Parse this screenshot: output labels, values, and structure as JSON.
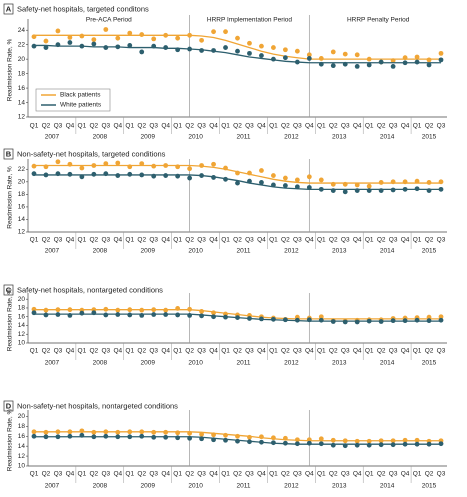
{
  "chart_data": [
    {
      "type": "scatter",
      "panel_label": "A",
      "title": "Safety-net hospitals, targeted conditons",
      "y_label": "Readmission Rate, %",
      "periods": [
        "Pre-ACA Period",
        "HRRP Implementation Period",
        "HRRP Penalty Period"
      ],
      "legend_position": "lower left",
      "categories": [
        "Q1",
        "Q2",
        "Q3",
        "Q4",
        "Q1",
        "Q2",
        "Q3",
        "Q4",
        "Q1",
        "Q2",
        "Q3",
        "Q4",
        "Q1",
        "Q2",
        "Q3",
        "Q4",
        "Q1",
        "Q2",
        "Q3",
        "Q4",
        "Q1",
        "Q2",
        "Q3",
        "Q4",
        "Q1",
        "Q2",
        "Q3",
        "Q4",
        "Q1",
        "Q2",
        "Q3",
        "Q4",
        "Q1",
        "Q2",
        "Q3"
      ],
      "years": [
        "2007",
        "2008",
        "2009",
        "2010",
        "2011",
        "2012",
        "2013",
        "2014",
        "2015"
      ],
      "ylim": [
        12,
        25
      ],
      "yticks": [
        12,
        14,
        16,
        18,
        20,
        22,
        24
      ],
      "grid": false,
      "series": [
        {
          "name": "Black patients",
          "color": "#f0a535",
          "values": [
            23.1,
            22.5,
            23.9,
            23.0,
            23.2,
            22.7,
            24.1,
            22.9,
            23.6,
            23.4,
            22.8,
            23.3,
            22.9,
            23.3,
            22.6,
            23.8,
            23.8,
            22.9,
            22.2,
            21.8,
            21.6,
            21.3,
            21.1,
            20.6,
            20.1,
            21.0,
            20.7,
            20.6,
            20.0,
            19.6,
            19.8,
            20.2,
            20.3,
            19.9,
            20.8
          ],
          "trend": [
            23.3,
            23.3,
            23.3,
            23.3,
            23.3,
            23.3,
            23.3,
            23.3,
            23.3,
            23.3,
            23.3,
            23.3,
            23.3,
            23.3,
            23.2,
            23.0,
            22.6,
            22.1,
            21.6,
            21.1,
            20.7,
            20.4,
            20.2,
            20.0,
            20.0,
            20.0,
            20.0,
            20.0,
            20.0,
            20.0,
            20.0,
            20.0,
            20.0,
            20.0,
            20.0
          ]
        },
        {
          "name": "White patients",
          "color": "#2d5f6e",
          "values": [
            21.8,
            21.6,
            22.0,
            22.3,
            21.8,
            22.1,
            21.6,
            21.7,
            21.9,
            21.0,
            21.8,
            21.6,
            21.3,
            21.4,
            21.2,
            21.2,
            21.6,
            21.1,
            20.8,
            20.5,
            20.0,
            20.2,
            19.6,
            20.1,
            19.3,
            19.1,
            19.3,
            19.0,
            19.2,
            19.6,
            19.0,
            19.5,
            19.6,
            19.2,
            19.9
          ],
          "trend": [
            21.9,
            21.9,
            21.8,
            21.8,
            21.8,
            21.7,
            21.7,
            21.7,
            21.6,
            21.6,
            21.6,
            21.5,
            21.5,
            21.4,
            21.3,
            21.1,
            20.9,
            20.6,
            20.3,
            20.1,
            19.9,
            19.7,
            19.6,
            19.5,
            19.5,
            19.5,
            19.5,
            19.5,
            19.5,
            19.5,
            19.5,
            19.5,
            19.5,
            19.5,
            19.5
          ]
        }
      ]
    },
    {
      "type": "scatter",
      "panel_label": "B",
      "title": "Non-safety-net hospitals, targeted conditions",
      "y_label": "Readmission Rate, %",
      "categories": [
        "Q1",
        "Q2",
        "Q3",
        "Q4",
        "Q1",
        "Q2",
        "Q3",
        "Q4",
        "Q1",
        "Q2",
        "Q3",
        "Q4",
        "Q1",
        "Q2",
        "Q3",
        "Q4",
        "Q1",
        "Q2",
        "Q3",
        "Q4",
        "Q1",
        "Q2",
        "Q3",
        "Q4",
        "Q1",
        "Q2",
        "Q3",
        "Q4",
        "Q1",
        "Q2",
        "Q3",
        "Q4",
        "Q1",
        "Q2",
        "Q3"
      ],
      "years": [
        "2007",
        "2008",
        "2009",
        "2010",
        "2011",
        "2012",
        "2013",
        "2014",
        "2015"
      ],
      "ylim": [
        12,
        23
      ],
      "yticks": [
        12,
        14,
        16,
        18,
        20,
        22
      ],
      "grid": false,
      "series": [
        {
          "name": "Black patients",
          "color": "#f0a535",
          "values": [
            22.5,
            22.4,
            23.2,
            22.8,
            22.2,
            22.6,
            22.9,
            23.0,
            22.4,
            22.9,
            22.5,
            22.6,
            22.4,
            22.1,
            22.6,
            22.8,
            22.2,
            21.4,
            21.4,
            21.8,
            21.0,
            20.6,
            20.3,
            20.8,
            20.3,
            19.6,
            19.6,
            19.5,
            19.3,
            19.9,
            20.0,
            20.0,
            20.1,
            19.9,
            20.0
          ],
          "trend": [
            22.6,
            22.6,
            22.6,
            22.6,
            22.6,
            22.6,
            22.6,
            22.6,
            22.6,
            22.6,
            22.6,
            22.6,
            22.6,
            22.6,
            22.5,
            22.3,
            22.0,
            21.6,
            21.2,
            20.8,
            20.4,
            20.1,
            19.9,
            19.8,
            19.8,
            19.8,
            19.8,
            19.8,
            19.8,
            19.8,
            19.8,
            19.8,
            19.8,
            19.8,
            19.8
          ]
        },
        {
          "name": "White patients",
          "color": "#2d5f6e",
          "values": [
            21.3,
            21.1,
            21.3,
            21.2,
            20.8,
            21.2,
            21.3,
            21.0,
            21.2,
            21.1,
            20.9,
            21.0,
            20.9,
            20.6,
            21.0,
            20.7,
            20.4,
            19.8,
            20.1,
            19.9,
            19.5,
            19.4,
            19.2,
            19.1,
            18.8,
            18.6,
            18.4,
            18.6,
            18.6,
            18.6,
            18.7,
            18.8,
            18.9,
            18.6,
            18.8
          ],
          "trend": [
            21.1,
            21.1,
            21.1,
            21.1,
            21.1,
            21.1,
            21.1,
            21.1,
            21.1,
            21.1,
            21.1,
            21.1,
            21.1,
            21.1,
            21.0,
            20.8,
            20.5,
            20.2,
            19.8,
            19.5,
            19.2,
            19.0,
            18.9,
            18.8,
            18.8,
            18.8,
            18.8,
            18.8,
            18.8,
            18.8,
            18.8,
            18.8,
            18.8,
            18.8,
            18.8
          ]
        }
      ]
    },
    {
      "type": "scatter",
      "panel_label": "C",
      "title": "Safety-net hospitals, nontargeted conditions",
      "y_label": "Readmission Rate, %",
      "categories": [
        "Q1",
        "Q2",
        "Q3",
        "Q4",
        "Q1",
        "Q2",
        "Q3",
        "Q4",
        "Q1",
        "Q2",
        "Q3",
        "Q4",
        "Q1",
        "Q2",
        "Q3",
        "Q4",
        "Q1",
        "Q2",
        "Q3",
        "Q4",
        "Q1",
        "Q2",
        "Q3",
        "Q4",
        "Q1",
        "Q2",
        "Q3",
        "Q4",
        "Q1",
        "Q2",
        "Q3",
        "Q4",
        "Q1",
        "Q2",
        "Q3"
      ],
      "years": [
        "2007",
        "2008",
        "2009",
        "2010",
        "2011",
        "2012",
        "2013",
        "2014",
        "2015"
      ],
      "ylim": [
        10,
        20.5
      ],
      "yticks": [
        10,
        12,
        14,
        16,
        18,
        20
      ],
      "grid": false,
      "series": [
        {
          "name": "Black patients",
          "color": "#f0a535",
          "values": [
            17.7,
            17.5,
            17.6,
            17.6,
            17.5,
            17.6,
            17.7,
            17.5,
            17.6,
            17.5,
            17.6,
            17.5,
            17.9,
            17.7,
            17.2,
            16.9,
            16.6,
            16.4,
            16.3,
            16.0,
            15.7,
            15.4,
            15.9,
            15.7,
            16.0,
            15.1,
            15.0,
            15.2,
            15.3,
            15.3,
            15.6,
            15.7,
            15.8,
            15.9,
            16.0
          ],
          "trend": [
            17.6,
            17.6,
            17.6,
            17.6,
            17.6,
            17.6,
            17.6,
            17.6,
            17.6,
            17.6,
            17.6,
            17.6,
            17.6,
            17.6,
            17.4,
            17.1,
            16.8,
            16.5,
            16.2,
            15.9,
            15.7,
            15.6,
            15.5,
            15.5,
            15.5,
            15.5,
            15.5,
            15.5,
            15.5,
            15.5,
            15.5,
            15.5,
            15.5,
            15.5,
            15.5
          ]
        },
        {
          "name": "White patients",
          "color": "#2d5f6e",
          "values": [
            16.9,
            16.4,
            16.5,
            16.3,
            16.8,
            16.9,
            16.4,
            16.5,
            16.4,
            16.3,
            16.5,
            16.5,
            16.4,
            16.3,
            16.2,
            16.0,
            15.9,
            15.8,
            15.6,
            15.5,
            15.4,
            15.3,
            15.2,
            15.3,
            15.2,
            14.9,
            14.8,
            14.8,
            15.0,
            14.9,
            15.1,
            15.1,
            15.2,
            15.1,
            15.2
          ],
          "trend": [
            16.6,
            16.6,
            16.6,
            16.6,
            16.6,
            16.6,
            16.6,
            16.6,
            16.6,
            16.6,
            16.6,
            16.6,
            16.6,
            16.6,
            16.4,
            16.2,
            16.0,
            15.8,
            15.6,
            15.4,
            15.3,
            15.2,
            15.1,
            15.0,
            15.0,
            15.0,
            15.0,
            15.0,
            15.0,
            15.0,
            15.0,
            15.0,
            15.0,
            15.0,
            15.0
          ]
        }
      ]
    },
    {
      "type": "scatter",
      "panel_label": "D",
      "title": "Non-safety-net hospitals, nontargeted conditions",
      "y_label": "Readmission Rate, %",
      "categories": [
        "Q1",
        "Q2",
        "Q3",
        "Q4",
        "Q1",
        "Q2",
        "Q3",
        "Q4",
        "Q1",
        "Q2",
        "Q3",
        "Q4",
        "Q1",
        "Q2",
        "Q3",
        "Q4",
        "Q1",
        "Q2",
        "Q3",
        "Q4",
        "Q1",
        "Q2",
        "Q3",
        "Q4",
        "Q1",
        "Q2",
        "Q3",
        "Q4",
        "Q1",
        "Q2",
        "Q3",
        "Q4",
        "Q1",
        "Q2",
        "Q3"
      ],
      "years": [
        "2007",
        "2008",
        "2009",
        "2010",
        "2011",
        "2012",
        "2013",
        "2014",
        "2015"
      ],
      "ylim": [
        10,
        20.5
      ],
      "yticks": [
        10,
        12,
        14,
        16,
        18,
        20
      ],
      "grid": false,
      "series": [
        {
          "name": "Black patients",
          "color": "#f0a535",
          "values": [
            16.9,
            16.8,
            16.9,
            16.9,
            17.1,
            16.8,
            16.9,
            16.8,
            16.9,
            16.9,
            16.8,
            16.8,
            16.7,
            16.6,
            16.4,
            16.3,
            16.2,
            16.0,
            15.8,
            15.9,
            15.7,
            15.6,
            15.3,
            15.3,
            15.5,
            15.2,
            15.1,
            15.0,
            15.0,
            15.1,
            15.1,
            15.2,
            15.2,
            15.0,
            15.1
          ],
          "trend": [
            16.9,
            16.9,
            16.9,
            16.9,
            16.9,
            16.9,
            16.9,
            16.9,
            16.9,
            16.9,
            16.9,
            16.9,
            16.9,
            16.9,
            16.8,
            16.6,
            16.4,
            16.2,
            16.0,
            15.7,
            15.5,
            15.3,
            15.2,
            15.1,
            15.1,
            15.1,
            15.1,
            15.1,
            15.1,
            15.1,
            15.1,
            15.1,
            15.1,
            15.1,
            15.1
          ]
        },
        {
          "name": "White patients",
          "color": "#2d5f6e",
          "values": [
            16.0,
            15.9,
            15.9,
            16.0,
            16.2,
            15.9,
            16.0,
            15.9,
            15.9,
            16.0,
            15.8,
            15.8,
            15.7,
            15.6,
            15.5,
            15.3,
            15.2,
            15.0,
            14.9,
            14.8,
            14.7,
            14.6,
            14.5,
            14.6,
            14.5,
            14.2,
            14.1,
            14.2,
            14.2,
            14.3,
            14.3,
            14.4,
            14.4,
            14.4,
            14.5
          ],
          "trend": [
            15.9,
            15.9,
            15.9,
            15.9,
            15.9,
            15.9,
            15.9,
            15.9,
            15.9,
            15.9,
            15.9,
            15.9,
            15.9,
            15.9,
            15.8,
            15.6,
            15.4,
            15.2,
            15.0,
            14.8,
            14.6,
            14.5,
            14.4,
            14.4,
            14.4,
            14.4,
            14.4,
            14.4,
            14.4,
            14.4,
            14.4,
            14.4,
            14.4,
            14.4,
            14.4
          ]
        }
      ]
    }
  ]
}
